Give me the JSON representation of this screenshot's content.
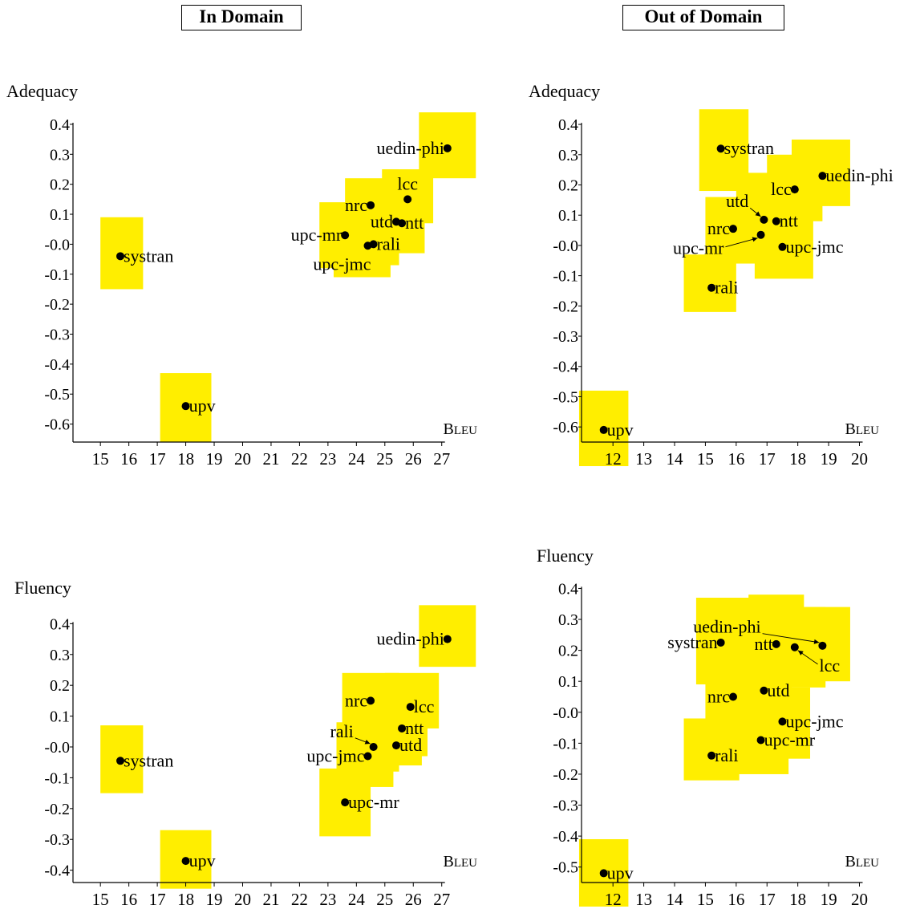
{
  "sections": {
    "in_domain": "In Domain",
    "out_of_domain": "Out of Domain"
  },
  "colors": {
    "box": "#ffee00",
    "point": "#000000"
  },
  "chart_data": [
    {
      "type": "scatter",
      "panel": "In Domain",
      "ylabel": "Adequacy",
      "xlabel": "BLEU",
      "xlim": [
        14.6,
        27.6
      ],
      "ylim": [
        -0.66,
        0.44
      ],
      "xticks": [
        15,
        16,
        17,
        18,
        19,
        20,
        21,
        22,
        23,
        24,
        25,
        26,
        27
      ],
      "yticks": [
        -0.6,
        -0.5,
        -0.4,
        -0.3,
        -0.2,
        -0.1,
        0.0,
        0.1,
        0.2,
        0.3,
        0.4
      ],
      "ytick_labels": [
        "-0.6",
        "-0.5",
        "-0.4",
        "-0.3",
        "-0.2",
        "-0.1",
        "-0.0",
        "0.1",
        "0.2",
        "0.3",
        "0.4"
      ],
      "points": [
        {
          "label": "uedin-phi",
          "x": 27.2,
          "y": 0.32,
          "box": {
            "x": [
              26.2,
              28.2
            ],
            "y": [
              0.22,
              0.44
            ]
          },
          "pos": "left"
        },
        {
          "label": "lcc",
          "x": 25.8,
          "y": 0.15,
          "box": {
            "x": [
              24.9,
              26.7
            ],
            "y": [
              0.07,
              0.25
            ]
          },
          "pos": "above"
        },
        {
          "label": "nrc",
          "x": 24.5,
          "y": 0.13,
          "box": {
            "x": [
              23.6,
              25.4
            ],
            "y": [
              0.03,
              0.22
            ]
          },
          "pos": "left"
        },
        {
          "label": "ntt",
          "x": 25.6,
          "y": 0.07,
          "box": {
            "x": [
              24.9,
              26.4
            ],
            "y": [
              -0.03,
              0.19
            ]
          },
          "pos": "right"
        },
        {
          "label": "utd",
          "x": 25.4,
          "y": 0.075,
          "box": {
            "x": [
              24.5,
              26.3
            ],
            "y": [
              -0.02,
              0.16
            ]
          },
          "pos": "left"
        },
        {
          "label": "upc-mr",
          "x": 23.6,
          "y": 0.03,
          "box": {
            "x": [
              22.7,
              24.5
            ],
            "y": [
              -0.08,
              0.14
            ]
          },
          "pos": "left"
        },
        {
          "label": "rali",
          "x": 24.6,
          "y": 0.0,
          "box": {
            "x": [
              23.7,
              25.5
            ],
            "y": [
              -0.07,
              0.09
            ]
          },
          "pos": "right"
        },
        {
          "label": "upc-jmc",
          "x": 24.4,
          "y": -0.005,
          "box": {
            "x": [
              23.2,
              25.2
            ],
            "y": [
              -0.11,
              0.08
            ]
          },
          "pos": "below-left"
        },
        {
          "label": "systran",
          "x": 15.7,
          "y": -0.04,
          "box": {
            "x": [
              15.0,
              16.5
            ],
            "y": [
              -0.15,
              0.09
            ]
          },
          "pos": "right"
        },
        {
          "label": "upv",
          "x": 18.0,
          "y": -0.54,
          "box": {
            "x": [
              17.1,
              18.9
            ],
            "y": [
              -0.66,
              -0.43
            ]
          },
          "pos": "right"
        }
      ]
    },
    {
      "type": "scatter",
      "panel": "Out of Domain",
      "ylabel": "Adequacy",
      "xlabel": "BLEU",
      "xlim": [
        11.5,
        20.3
      ],
      "ylim": [
        -0.65,
        0.44
      ],
      "xticks": [
        12,
        13,
        14,
        15,
        16,
        17,
        18,
        19,
        20
      ],
      "yticks": [
        -0.6,
        -0.5,
        -0.4,
        -0.3,
        -0.2,
        -0.1,
        0.0,
        0.1,
        0.2,
        0.3,
        0.4
      ],
      "ytick_labels": [
        "-0.6",
        "-0.5",
        "-0.4",
        "-0.3",
        "-0.2",
        "-0.1",
        "-0.0",
        "0.1",
        "0.2",
        "0.3",
        "0.4"
      ],
      "points": [
        {
          "label": "systran",
          "x": 15.5,
          "y": 0.32,
          "box": {
            "x": [
              14.8,
              16.4
            ],
            "y": [
              0.18,
              0.45
            ]
          },
          "pos": "right"
        },
        {
          "label": "uedin-phi",
          "x": 18.8,
          "y": 0.23,
          "box": {
            "x": [
              17.8,
              19.7
            ],
            "y": [
              0.13,
              0.35
            ]
          },
          "pos": "right"
        },
        {
          "label": "lcc",
          "x": 17.9,
          "y": 0.185,
          "box": {
            "x": [
              17.0,
              18.8
            ],
            "y": [
              0.08,
              0.3
            ]
          },
          "pos": "left"
        },
        {
          "label": "utd",
          "x": 16.9,
          "y": 0.085,
          "box": {
            "x": [
              16.0,
              17.8
            ],
            "y": [
              -0.01,
              0.24
            ]
          },
          "pos": "callout",
          "lx": 16.4,
          "ly": 0.145
        },
        {
          "label": "ntt",
          "x": 17.3,
          "y": 0.08,
          "box": {
            "x": [
              16.4,
              18.2
            ],
            "y": [
              -0.02,
              0.17
            ]
          },
          "pos": "right"
        },
        {
          "label": "nrc",
          "x": 15.9,
          "y": 0.055,
          "box": {
            "x": [
              15.0,
              16.8
            ],
            "y": [
              -0.04,
              0.16
            ]
          },
          "pos": "left"
        },
        {
          "label": "upc-mr",
          "x": 16.8,
          "y": 0.035,
          "box": {
            "x": [
              15.9,
              17.7
            ],
            "y": [
              -0.06,
              0.14
            ]
          },
          "pos": "callout",
          "lx": 15.6,
          "ly": -0.01
        },
        {
          "label": "upc-jmc",
          "x": 17.5,
          "y": -0.005,
          "box": {
            "x": [
              16.6,
              18.5
            ],
            "y": [
              -0.11,
              0.1
            ]
          },
          "pos": "right"
        },
        {
          "label": "rali",
          "x": 15.2,
          "y": -0.14,
          "box": {
            "x": [
              14.3,
              16.0
            ],
            "y": [
              -0.22,
              -0.03
            ]
          },
          "pos": "right"
        },
        {
          "label": "upv",
          "x": 11.7,
          "y": -0.61,
          "box": {
            "x": [
              10.9,
              12.5
            ],
            "y": [
              -0.75,
              -0.48
            ]
          },
          "pos": "right"
        }
      ]
    },
    {
      "type": "scatter",
      "panel": "In Domain",
      "ylabel": "Fluency",
      "xlabel": "BLEU",
      "xlim": [
        14.6,
        27.6
      ],
      "ylim": [
        -0.44,
        0.44
      ],
      "xticks": [
        15,
        16,
        17,
        18,
        19,
        20,
        21,
        22,
        23,
        24,
        25,
        26,
        27
      ],
      "yticks": [
        -0.4,
        -0.3,
        -0.2,
        -0.1,
        0.0,
        0.1,
        0.2,
        0.3,
        0.4
      ],
      "ytick_labels": [
        "-0.4",
        "-0.3",
        "-0.2",
        "-0.1",
        "-0.0",
        "0.1",
        "0.2",
        "0.3",
        "0.4"
      ],
      "points": [
        {
          "label": "uedin-phi",
          "x": 27.2,
          "y": 0.35,
          "box": {
            "x": [
              26.2,
              28.2
            ],
            "y": [
              0.26,
              0.46
            ]
          },
          "pos": "left"
        },
        {
          "label": "nrc",
          "x": 24.5,
          "y": 0.15,
          "box": {
            "x": [
              23.5,
              25.5
            ],
            "y": [
              0.06,
              0.24
            ]
          },
          "pos": "left"
        },
        {
          "label": "lcc",
          "x": 25.9,
          "y": 0.13,
          "box": {
            "x": [
              25.0,
              26.9
            ],
            "y": [
              0.06,
              0.24
            ]
          },
          "pos": "right"
        },
        {
          "label": "ntt",
          "x": 25.6,
          "y": 0.06,
          "box": {
            "x": [
              24.7,
              26.5
            ],
            "y": [
              -0.03,
              0.15
            ]
          },
          "pos": "right"
        },
        {
          "label": "rali",
          "x": 24.6,
          "y": 0.0,
          "box": {
            "x": [
              23.6,
              25.5
            ],
            "y": [
              -0.08,
              0.16
            ]
          },
          "pos": "callout",
          "lx": 23.9,
          "ly": 0.05
        },
        {
          "label": "utd",
          "x": 25.4,
          "y": 0.005,
          "box": {
            "x": [
              24.5,
              26.3
            ],
            "y": [
              -0.06,
              0.1
            ]
          },
          "pos": "right"
        },
        {
          "label": "upc-jmc",
          "x": 24.4,
          "y": -0.03,
          "box": {
            "x": [
              23.3,
              25.3
            ],
            "y": [
              -0.13,
              0.08
            ]
          },
          "pos": "left"
        },
        {
          "label": "upc-mr",
          "x": 23.6,
          "y": -0.18,
          "box": {
            "x": [
              22.7,
              24.5
            ],
            "y": [
              -0.29,
              -0.07
            ]
          },
          "pos": "right"
        },
        {
          "label": "systran",
          "x": 15.7,
          "y": -0.045,
          "box": {
            "x": [
              15.0,
              16.5
            ],
            "y": [
              -0.15,
              0.07
            ]
          },
          "pos": "right"
        },
        {
          "label": "upv",
          "x": 18.0,
          "y": -0.37,
          "box": {
            "x": [
              17.1,
              18.9
            ],
            "y": [
              -0.46,
              -0.27
            ]
          },
          "pos": "right"
        }
      ]
    },
    {
      "type": "scatter",
      "panel": "Out of Domain",
      "ylabel": "Fluency",
      "xlabel": "BLEU",
      "xlim": [
        11.5,
        20.3
      ],
      "ylim": [
        -0.55,
        0.44
      ],
      "xticks": [
        12,
        13,
        14,
        15,
        16,
        17,
        18,
        19,
        20
      ],
      "yticks": [
        -0.5,
        -0.4,
        -0.3,
        -0.2,
        -0.1,
        0.0,
        0.1,
        0.2,
        0.3,
        0.4
      ],
      "ytick_labels": [
        "-0.5",
        "-0.4",
        "-0.3",
        "-0.2",
        "-0.1",
        "-0.0",
        "0.1",
        "0.2",
        "0.3",
        "0.4"
      ],
      "points": [
        {
          "label": "systran",
          "x": 15.5,
          "y": 0.225,
          "box": {
            "x": [
              14.7,
              16.6
            ],
            "y": [
              0.09,
              0.37
            ]
          },
          "pos": "left"
        },
        {
          "label": "uedin-phi",
          "x": 18.8,
          "y": 0.215,
          "box": {
            "x": [
              17.8,
              19.7
            ],
            "y": [
              0.1,
              0.34
            ]
          },
          "pos": "callout",
          "lx": 16.8,
          "ly": 0.275
        },
        {
          "label": "ntt",
          "x": 17.3,
          "y": 0.22,
          "box": {
            "x": [
              16.4,
              18.2
            ],
            "y": [
              0.1,
              0.38
            ]
          },
          "pos": "left"
        },
        {
          "label": "lcc",
          "x": 17.9,
          "y": 0.21,
          "box": {
            "x": [
              17.0,
              18.9
            ],
            "y": [
              0.08,
              0.34
            ]
          },
          "pos": "callout",
          "lx": 18.7,
          "ly": 0.15
        },
        {
          "label": "nrc",
          "x": 15.9,
          "y": 0.05,
          "box": {
            "x": [
              15.0,
              16.9
            ],
            "y": [
              -0.04,
              0.17
            ]
          },
          "pos": "left"
        },
        {
          "label": "utd",
          "x": 16.9,
          "y": 0.07,
          "box": {
            "x": [
              16.0,
              17.8
            ],
            "y": [
              -0.04,
              0.18
            ]
          },
          "pos": "right"
        },
        {
          "label": "upc-jmc",
          "x": 17.5,
          "y": -0.03,
          "box": {
            "x": [
              16.6,
              18.4
            ],
            "y": [
              -0.15,
              0.08
            ]
          },
          "pos": "right"
        },
        {
          "label": "upc-mr",
          "x": 16.8,
          "y": -0.09,
          "box": {
            "x": [
              15.9,
              17.7
            ],
            "y": [
              -0.2,
              0.04
            ]
          },
          "pos": "right"
        },
        {
          "label": "rali",
          "x": 15.2,
          "y": -0.14,
          "box": {
            "x": [
              14.3,
              16.1
            ],
            "y": [
              -0.22,
              -0.02
            ]
          },
          "pos": "right"
        },
        {
          "label": "upv",
          "x": 11.7,
          "y": -0.52,
          "box": {
            "x": [
              10.9,
              12.5
            ],
            "y": [
              -0.65,
              -0.41
            ]
          },
          "pos": "right"
        }
      ]
    }
  ]
}
